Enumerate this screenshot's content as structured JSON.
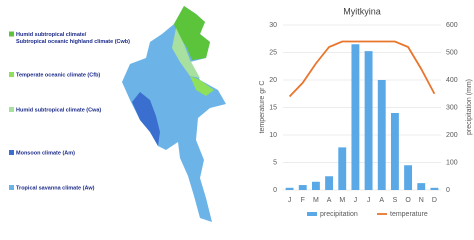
{
  "map": {
    "legend": [
      {
        "lines": [
          "Humid subtropical climate/",
          "Subtropical oceanic highland climate (Cwb)"
        ],
        "color": "#5cc43a"
      },
      {
        "lines": [
          "Temperate oceanic climate (Cfb)"
        ],
        "color": "#8ee05a"
      },
      {
        "lines": [
          "Humid subtropical climate (Cwa)"
        ],
        "color": "#a8e0a0"
      },
      {
        "lines": [
          "Monsoon climate (Am)"
        ],
        "color": "#3a6fd0"
      },
      {
        "lines": [
          "Tropical savanna climate (Aw)"
        ],
        "color": "#6cb4e8"
      }
    ]
  },
  "chart_data": {
    "type": "combo",
    "title": "Myitkyina",
    "y_label": "temperature gr C",
    "y2_label": "precipitation (mm)",
    "categories": [
      "J",
      "F",
      "M",
      "A",
      "M",
      "J",
      "J",
      "A",
      "S",
      "O",
      "N",
      "D"
    ],
    "series": [
      {
        "name": "precipitation",
        "type": "bar",
        "axis": "y2",
        "color": "#5aa9e6",
        "values": [
          8,
          18,
          30,
          50,
          155,
          530,
          505,
          400,
          280,
          90,
          25,
          8
        ]
      },
      {
        "name": "temperature",
        "type": "line",
        "color": "#e8762d",
        "values": [
          17,
          19.5,
          23,
          26,
          27,
          27,
          27,
          27,
          27,
          26,
          22,
          17.5
        ]
      }
    ],
    "ylim": [
      0,
      30
    ],
    "yticks": [
      0,
      5,
      10,
      15,
      20,
      25,
      30
    ],
    "y2lim": [
      0,
      600
    ],
    "y2ticks": [
      0,
      100,
      200,
      300,
      400,
      500,
      600
    ]
  }
}
